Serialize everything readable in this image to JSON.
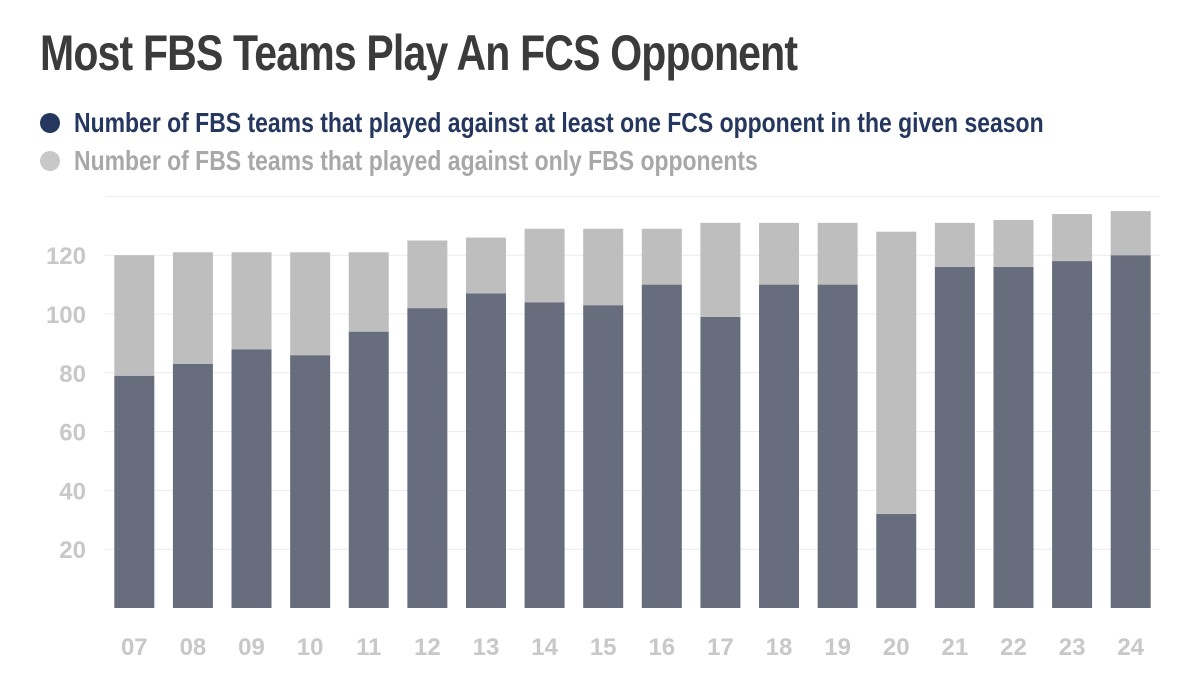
{
  "title": "Most FBS Teams Play An FCS Opponent",
  "colors": {
    "fcs": "#676d7d",
    "fbs_only": "#bebebe",
    "legend_fcs_dot": "#25375f",
    "legend_fcs_text": "#25375f",
    "legend_fbs_dot": "#c8c8c8",
    "legend_fbs_text": "#a8a8a8",
    "tick_text": "#c8c8c8",
    "grid": "#ececec"
  },
  "legend": [
    {
      "label": "Number of FBS teams that played against at least one FCS opponent in the given season"
    },
    {
      "label": "Number of FBS teams that played against only FBS opponents"
    }
  ],
  "chart_data": {
    "type": "bar",
    "stacked": true,
    "title": "Most FBS Teams Play An FCS Opponent",
    "xlabel": "",
    "ylabel": "",
    "categories": [
      "07",
      "08",
      "09",
      "10",
      "11",
      "12",
      "13",
      "14",
      "15",
      "16",
      "17",
      "18",
      "19",
      "20",
      "21",
      "22",
      "23",
      "24"
    ],
    "series": [
      {
        "name": "Number of FBS teams that played against at least one FCS opponent in the given season",
        "values": [
          79,
          83,
          88,
          86,
          94,
          102,
          107,
          104,
          103,
          110,
          99,
          110,
          110,
          32,
          116,
          116,
          118,
          120
        ]
      },
      {
        "name": "Number of FBS teams that played against only FBS opponents",
        "values": [
          41,
          38,
          33,
          35,
          27,
          23,
          19,
          25,
          26,
          19,
          32,
          21,
          21,
          96,
          15,
          16,
          16,
          15
        ]
      }
    ],
    "yticks": [
      20,
      40,
      60,
      80,
      100,
      120
    ],
    "ylim": [
      0,
      140
    ],
    "grid": true,
    "legend_position": "top-left"
  }
}
